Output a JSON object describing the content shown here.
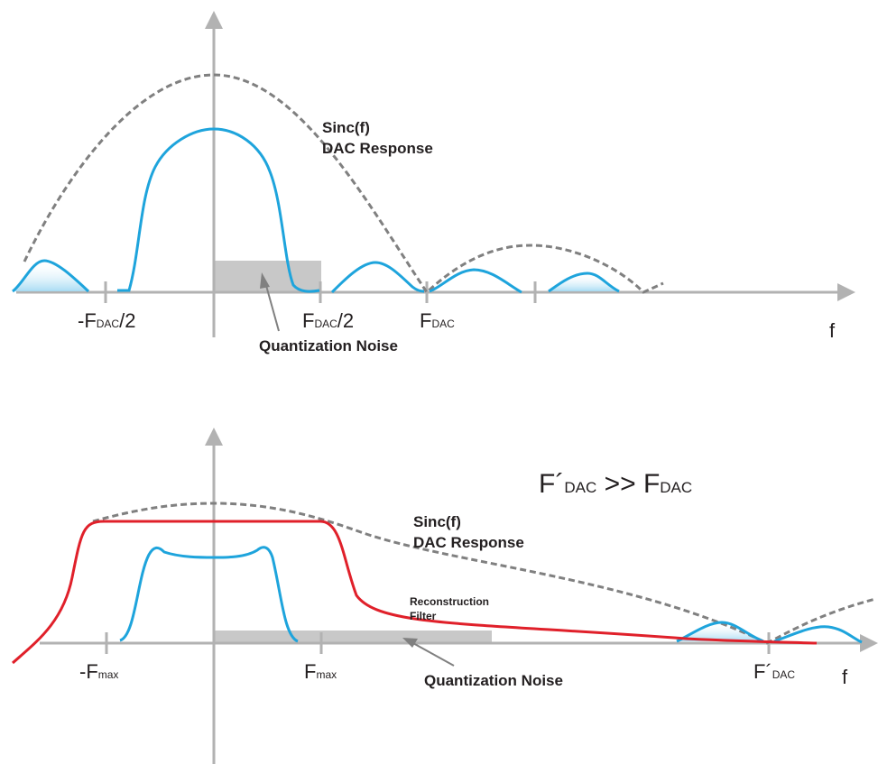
{
  "colors": {
    "axis": "#b2b2b2",
    "signal": "#1ea4dc",
    "sinc": "#808080",
    "filter": "#e0202a",
    "noise": "#c8c8c8",
    "text": "#231f20"
  },
  "top": {
    "sinc_label_line1": "Sinc(f)",
    "sinc_label_line2": "DAC Response",
    "noise_label": "Quantization Noise",
    "f_axis": "f",
    "tick_neg_half": {
      "pre": "-F",
      "sub": "DAC",
      "post": "/2"
    },
    "tick_pos_half": {
      "pre": "F",
      "sub": "DAC",
      "post": "/2"
    },
    "tick_fdac": {
      "pre": "F",
      "sub": "DAC"
    }
  },
  "bottom": {
    "relation": {
      "lhs": "F´",
      "lhs_sub": "DAC",
      "op": " >> ",
      "rhs": "F",
      "rhs_sub": "DAC"
    },
    "sinc_label_line1": "Sinc(f)",
    "sinc_label_line2": "DAC Response",
    "filter_label_line1": "Reconstruction",
    "filter_label_line2": "Filter",
    "noise_label": "Quantization Noise",
    "f_axis": "f",
    "tick_neg_fmax": {
      "pre": "-F",
      "sub": "max"
    },
    "tick_fmax": {
      "pre": "F",
      "sub": "max"
    },
    "tick_fdac_prime": {
      "pre": "F´",
      "sub": "DAC"
    }
  }
}
